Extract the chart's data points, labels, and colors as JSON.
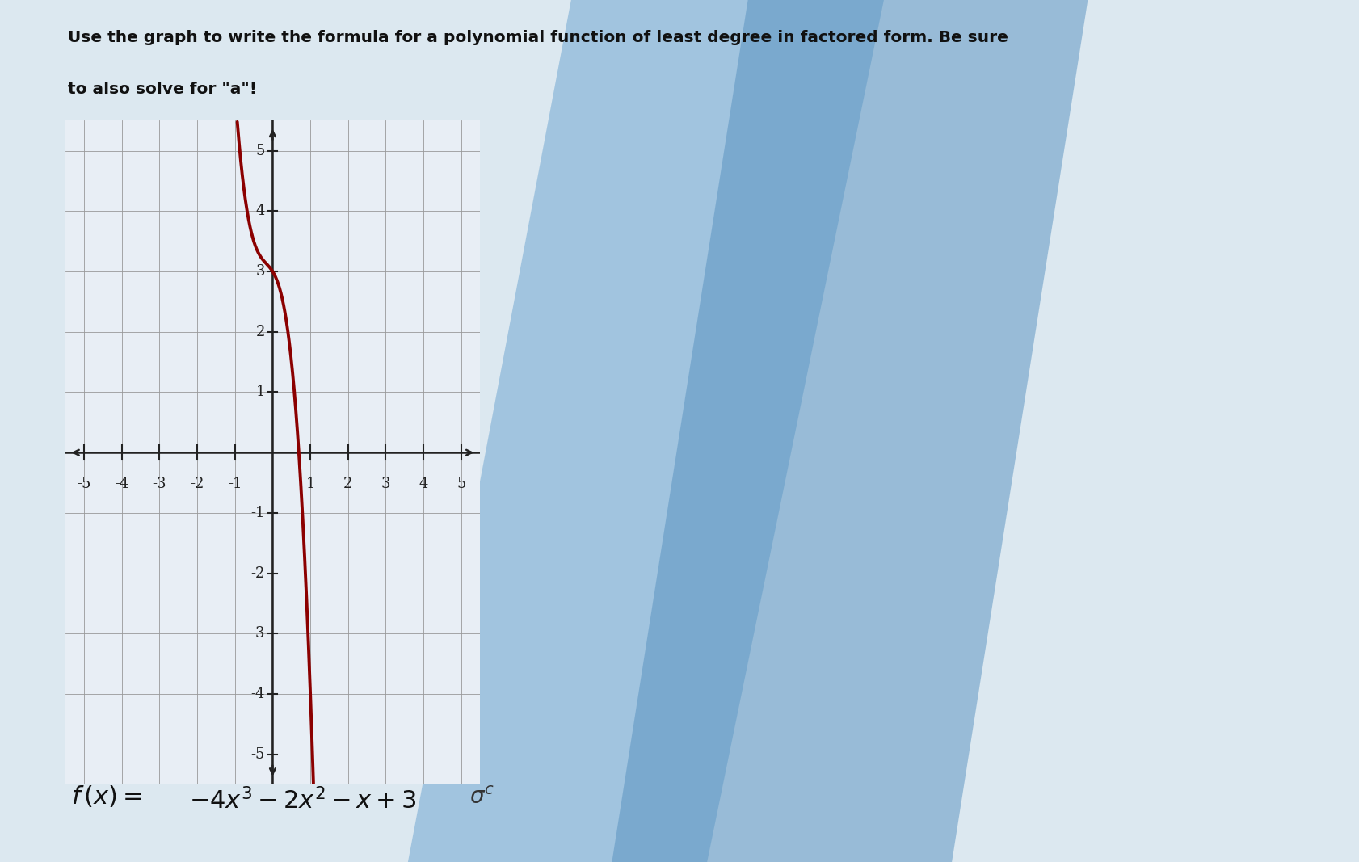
{
  "title_line1": "Use the graph to write the formula for a polynomial function of least degree in factored form. Be sure",
  "title_line2": "to also solve for \"a\"!",
  "xmin": -5,
  "xmax": 5,
  "ymin": -5,
  "ymax": 5,
  "curve_color": "#8B0000",
  "graph_bg_color": "#e8eef5",
  "grid_color": "#999999",
  "axis_color": "#222222",
  "title_color": "#111111",
  "title_fontsize": 14.5,
  "tick_fontsize": 13,
  "curve_linewidth": 2.8,
  "coefficients": [
    -4,
    -2,
    -1,
    3
  ],
  "bg_left": "#dce8f0",
  "bg_right_colors": [
    "#b8cfe0",
    "#6a9ec0",
    "#4a80b0",
    "#b8cfe0"
  ],
  "formula_fontsize": 22
}
